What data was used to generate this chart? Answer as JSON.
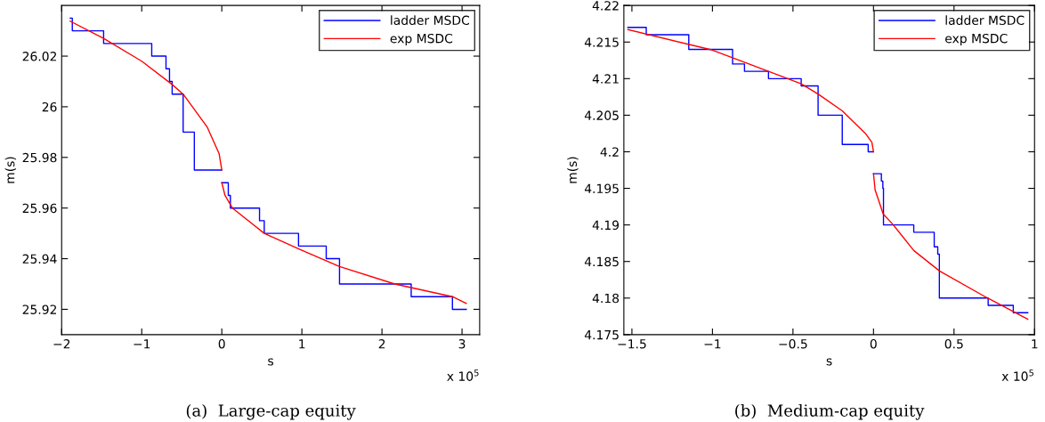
{
  "chart_data": [
    {
      "type": "line",
      "title": "(a)  Large-cap equity",
      "xlabel": "s",
      "ylabel": "m(s)",
      "annotations": [
        "x 10$^{5}$"
      ],
      "xlim": [
        -2,
        3.22
      ],
      "ylim": [
        25.91,
        26.04
      ],
      "xticks": [
        {
          "value": -2,
          "label": "−2"
        },
        {
          "value": -1,
          "label": "−1"
        },
        0,
        1,
        2,
        3
      ],
      "yticks": [
        25.92,
        25.94,
        25.96,
        25.98,
        26,
        26.02
      ],
      "legend": "top right",
      "grid": false,
      "series": [
        {
          "name": "ladder MSDC",
          "type": "step",
          "color": "#0000ff",
          "x": [
            -1.893,
            -1.867,
            -1.476,
            -0.875,
            -0.697,
            -0.653,
            -0.62,
            -0.483,
            -0.343,
            0,
            null,
            0,
            0.081,
            0.107,
            0.471,
            0.53,
            0.958,
            1.304,
            1.47,
            2.365,
            2.88,
            3.053
          ],
          "values": [
            26.035,
            26.03,
            26.025,
            26.02,
            26.015,
            26.01,
            26.005,
            25.99,
            25.975,
            25.975,
            null,
            25.97,
            25.965,
            25.96,
            25.955,
            25.95,
            25.945,
            25.94,
            25.93,
            25.925,
            25.92,
            25.92
          ]
        },
        {
          "name": "exp MSDC",
          "color": "#ff0000",
          "x": [
            -1.893,
            -1.476,
            -1.0,
            -0.624,
            -0.483,
            -0.181,
            -0.033,
            0,
            null,
            0,
            0.04,
            0.133,
            0.53,
            1.0,
            1.47,
            2.16,
            2.88,
            3.053
          ],
          "values": [
            26.0338,
            26.027,
            26.018,
            26.0089,
            26.005,
            25.9919,
            25.9814,
            25.975,
            null,
            25.97,
            25.965,
            25.96,
            25.95,
            25.9433,
            25.9369,
            25.93,
            25.925,
            25.9223
          ]
        }
      ]
    },
    {
      "type": "line",
      "title": "(b)  Medium-cap equity",
      "xlabel": "s",
      "ylabel": "m(s)",
      "annotations": [
        "x 10$^{5}$"
      ],
      "xlim": [
        -1.55,
        1
      ],
      "ylim": [
        4.175,
        4.22
      ],
      "xticks": [
        {
          "value": -1.5,
          "label": "−1.5"
        },
        {
          "value": -1,
          "label": "−1"
        },
        {
          "value": -0.5,
          "label": "−0.5"
        },
        0,
        0.5,
        1
      ],
      "yticks": [
        4.175,
        4.18,
        4.185,
        4.19,
        4.195,
        4.2,
        4.205,
        4.21,
        4.215,
        4.22
      ],
      "legend": "top right",
      "grid": false,
      "series": [
        {
          "name": "ladder MSDC",
          "type": "step",
          "color": "#0000ff",
          "x": [
            -1.525,
            -1.411,
            -1.147,
            -0.875,
            -0.801,
            -0.652,
            -0.449,
            -0.344,
            -0.194,
            -0.033,
            0,
            null,
            0,
            0.049,
            0.058,
            0.062,
            0.25,
            0.377,
            0.399,
            0.409,
            0.712,
            0.868,
            0.958
          ],
          "values": [
            4.217,
            4.216,
            4.214,
            4.212,
            4.211,
            4.21,
            4.209,
            4.205,
            4.201,
            4.2,
            4.2,
            null,
            4.197,
            4.196,
            4.195,
            4.19,
            4.189,
            4.187,
            4.186,
            4.18,
            4.179,
            4.178,
            4.178
          ]
        },
        {
          "name": "exp MSDC",
          "color": "#ff0000",
          "x": [
            -1.525,
            -1.0,
            -0.652,
            -0.449,
            -0.344,
            -0.194,
            -0.05,
            -0.01,
            0,
            null,
            0,
            0.01,
            0.06,
            0.123,
            0.25,
            0.41,
            0.7,
            0.958
          ],
          "values": [
            4.2167,
            4.2139,
            4.211,
            4.2093,
            4.2079,
            4.2056,
            4.2025,
            4.2013,
            4.2,
            null,
            4.197,
            4.1948,
            4.1915,
            4.19,
            4.1865,
            4.1837,
            4.1801,
            4.1771
          ]
        }
      ]
    }
  ]
}
